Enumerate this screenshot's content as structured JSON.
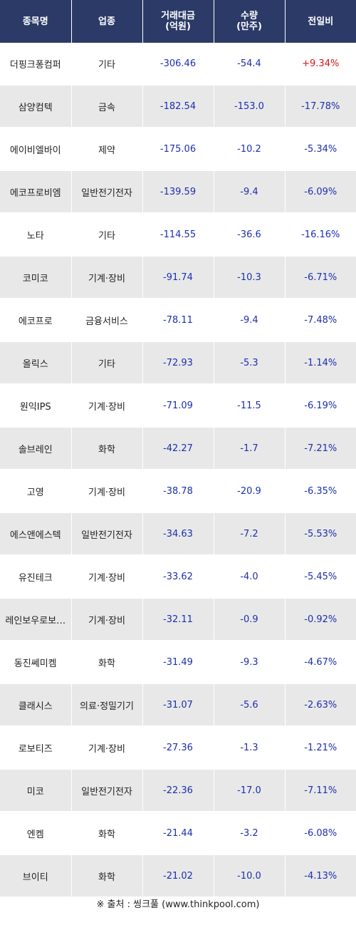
{
  "header": {
    "name": "종목명",
    "sector": "업종",
    "trade_value_line1": "거래대금",
    "trade_value_line2": "(억원)",
    "quantity_line1": "수량",
    "quantity_line2": "(만주)",
    "change": "전일비"
  },
  "colors": {
    "header_bg": "#2b3a67",
    "down": "#1b2fb0",
    "up": "#d7141a",
    "stripe": "#e8e8e8"
  },
  "rows": [
    {
      "name": "더핑크퐁컴퍼",
      "sector": "기타",
      "value": "-306.46",
      "qty": "-54.4",
      "change": "+9.34%",
      "dir": "up"
    },
    {
      "name": "삼양컴텍",
      "sector": "금속",
      "value": "-182.54",
      "qty": "-153.0",
      "change": "-17.78%",
      "dir": "down"
    },
    {
      "name": "에이비엘바이",
      "sector": "제약",
      "value": "-175.06",
      "qty": "-10.2",
      "change": "-5.34%",
      "dir": "down"
    },
    {
      "name": "에코프로비엠",
      "sector": "일반전기전자",
      "value": "-139.59",
      "qty": "-9.4",
      "change": "-6.09%",
      "dir": "down"
    },
    {
      "name": "노타",
      "sector": "기타",
      "value": "-114.55",
      "qty": "-36.6",
      "change": "-16.16%",
      "dir": "down"
    },
    {
      "name": "코미코",
      "sector": "기계·장비",
      "value": "-91.74",
      "qty": "-10.3",
      "change": "-6.71%",
      "dir": "down"
    },
    {
      "name": "에코프로",
      "sector": "금융서비스",
      "value": "-78.11",
      "qty": "-9.4",
      "change": "-7.48%",
      "dir": "down"
    },
    {
      "name": "올릭스",
      "sector": "기타",
      "value": "-72.93",
      "qty": "-5.3",
      "change": "-1.14%",
      "dir": "down"
    },
    {
      "name": "원익IPS",
      "sector": "기계·장비",
      "value": "-71.09",
      "qty": "-11.5",
      "change": "-6.19%",
      "dir": "down"
    },
    {
      "name": "솔브레인",
      "sector": "화학",
      "value": "-42.27",
      "qty": "-1.7",
      "change": "-7.21%",
      "dir": "down"
    },
    {
      "name": "고영",
      "sector": "기계·장비",
      "value": "-38.78",
      "qty": "-20.9",
      "change": "-6.35%",
      "dir": "down"
    },
    {
      "name": "에스앤에스텍",
      "sector": "일반전기전자",
      "value": "-34.63",
      "qty": "-7.2",
      "change": "-5.53%",
      "dir": "down"
    },
    {
      "name": "유진테크",
      "sector": "기계·장비",
      "value": "-33.62",
      "qty": "-4.0",
      "change": "-5.45%",
      "dir": "down"
    },
    {
      "name": "레인보우로보…",
      "sector": "기계·장비",
      "value": "-32.11",
      "qty": "-0.9",
      "change": "-0.92%",
      "dir": "down"
    },
    {
      "name": "동진쎄미켐",
      "sector": "화학",
      "value": "-31.49",
      "qty": "-9.3",
      "change": "-4.67%",
      "dir": "down"
    },
    {
      "name": "클래시스",
      "sector": "의료·정밀기기",
      "value": "-31.07",
      "qty": "-5.6",
      "change": "-2.63%",
      "dir": "down"
    },
    {
      "name": "로보티즈",
      "sector": "기계·장비",
      "value": "-27.36",
      "qty": "-1.3",
      "change": "-1.21%",
      "dir": "down"
    },
    {
      "name": "미코",
      "sector": "일반전기전자",
      "value": "-22.36",
      "qty": "-17.0",
      "change": "-7.11%",
      "dir": "down"
    },
    {
      "name": "엔켐",
      "sector": "화학",
      "value": "-21.44",
      "qty": "-3.2",
      "change": "-6.08%",
      "dir": "down"
    },
    {
      "name": "브이티",
      "sector": "화학",
      "value": "-21.02",
      "qty": "-10.0",
      "change": "-4.13%",
      "dir": "down"
    }
  ],
  "source": "※ 출처 : 씽크풀 (www.thinkpool.com)"
}
